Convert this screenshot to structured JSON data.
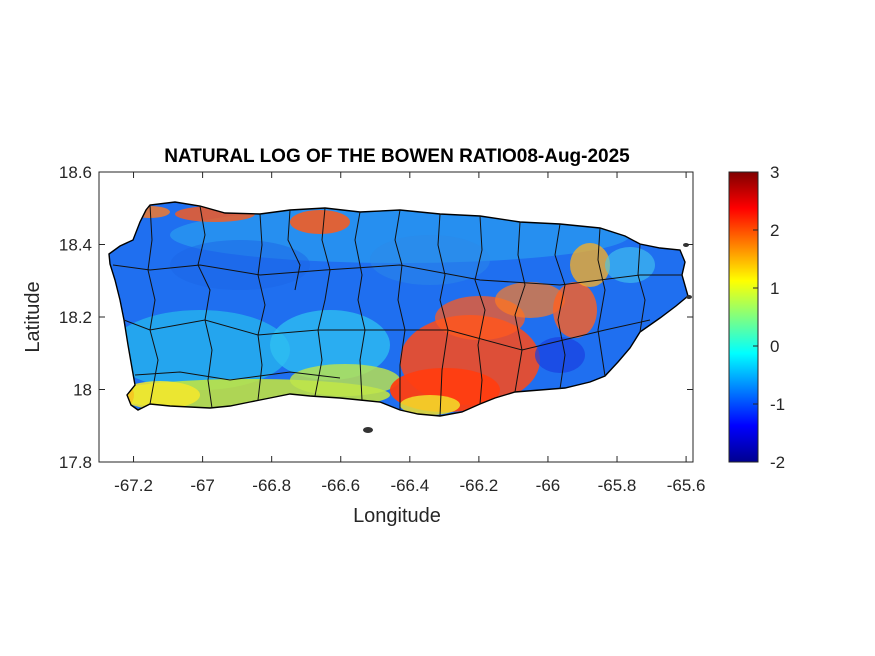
{
  "title": "NATURAL LOG OF THE BOWEN RATIO08-Aug-2025",
  "map": {
    "xlabel": "Longitude",
    "ylabel": "Latitude",
    "xlim": [
      -67.3,
      -65.58
    ],
    "ylim": [
      17.8,
      18.6
    ],
    "xticks": [
      -67.2,
      -67,
      -66.8,
      -66.6,
      -66.4,
      -66.2,
      -66,
      -65.8,
      -65.6
    ],
    "xtick_labels": [
      "-67.2",
      "-67",
      "-66.8",
      "-66.6",
      "-66.4",
      "-66.2",
      "-66",
      "-65.8",
      "-65.6"
    ],
    "yticks": [
      17.8,
      18,
      18.2,
      18.4,
      18.6
    ],
    "ytick_labels": [
      "17.8",
      "18",
      "18.2",
      "18.4",
      "18.6"
    ],
    "colormap": "jet",
    "boundary_color": "#000000"
  },
  "colorbar": {
    "min": -2,
    "max": 3,
    "ticks": [
      -2,
      -1,
      0,
      1,
      2,
      3
    ],
    "tick_labels": [
      "-2",
      "-1",
      "0",
      "1",
      "2",
      "3"
    ],
    "colors": [
      "#00008f",
      "#0000ff",
      "#0080ff",
      "#00ffff",
      "#80ff80",
      "#ffff00",
      "#ff8000",
      "#ff0000",
      "#800000"
    ]
  }
}
